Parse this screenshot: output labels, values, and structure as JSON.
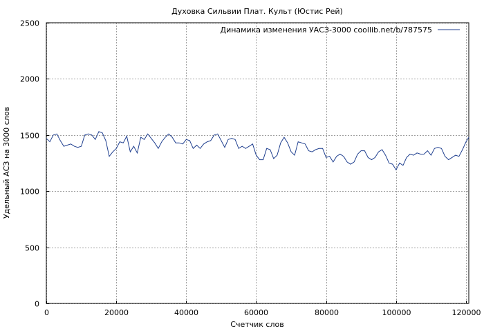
{
  "chart_data": {
    "type": "line",
    "title": "Духовка Сильвии Плат. Культ (Юстис Рей)",
    "xlabel": "Счетчик слов",
    "ylabel": "Удельный АСЗ на 3000 слов",
    "xlim": [
      0,
      120800
    ],
    "ylim": [
      0,
      2500
    ],
    "x_ticks": [
      0,
      20000,
      40000,
      60000,
      80000,
      100000,
      120000
    ],
    "y_ticks": [
      0,
      500,
      1000,
      1500,
      2000,
      2500
    ],
    "grid": true,
    "legend_position": "top-right",
    "series": [
      {
        "name": "Динамика изменения УАСЗ-3000 coollib.net/b/787575",
        "color": "#1f3f8f",
        "x": [
          0,
          1000,
          2000,
          3000,
          4000,
          5000,
          6000,
          7000,
          8000,
          9000,
          10000,
          11000,
          12000,
          13000,
          14000,
          15000,
          16000,
          17000,
          18000,
          19000,
          20000,
          21000,
          22000,
          23000,
          24000,
          25000,
          26000,
          27000,
          28000,
          29000,
          30000,
          31000,
          32000,
          33000,
          34000,
          35000,
          36000,
          37000,
          38000,
          39000,
          40000,
          41000,
          42000,
          43000,
          44000,
          45000,
          46000,
          47000,
          48000,
          49000,
          50000,
          51000,
          52000,
          53000,
          54000,
          55000,
          56000,
          57000,
          58000,
          59000,
          60000,
          61000,
          62000,
          63000,
          64000,
          65000,
          66000,
          67000,
          68000,
          69000,
          70000,
          71000,
          72000,
          73000,
          74000,
          75000,
          76000,
          77000,
          78000,
          79000,
          80000,
          81000,
          82000,
          83000,
          84000,
          85000,
          86000,
          87000,
          88000,
          89000,
          90000,
          91000,
          92000,
          93000,
          94000,
          95000,
          96000,
          97000,
          98000,
          99000,
          100000,
          101000,
          102000,
          103000,
          104000,
          105000,
          106000,
          107000,
          108000,
          109000,
          110000,
          111000,
          112000,
          113000,
          114000,
          115000,
          116000,
          117000,
          118000,
          119000,
          120000,
          120800
        ],
        "y": [
          1470,
          1440,
          1500,
          1510,
          1450,
          1400,
          1410,
          1420,
          1400,
          1390,
          1400,
          1500,
          1510,
          1500,
          1460,
          1530,
          1520,
          1450,
          1310,
          1350,
          1380,
          1440,
          1430,
          1490,
          1350,
          1400,
          1340,
          1480,
          1460,
          1510,
          1470,
          1430,
          1380,
          1440,
          1480,
          1510,
          1480,
          1430,
          1430,
          1420,
          1460,
          1450,
          1380,
          1410,
          1380,
          1420,
          1440,
          1450,
          1500,
          1510,
          1450,
          1390,
          1460,
          1470,
          1460,
          1380,
          1400,
          1380,
          1400,
          1420,
          1320,
          1280,
          1280,
          1380,
          1370,
          1290,
          1320,
          1430,
          1480,
          1430,
          1350,
          1320,
          1440,
          1430,
          1420,
          1360,
          1350,
          1370,
          1380,
          1380,
          1300,
          1310,
          1260,
          1310,
          1330,
          1310,
          1260,
          1240,
          1260,
          1330,
          1360,
          1360,
          1300,
          1280,
          1300,
          1350,
          1370,
          1320,
          1250,
          1240,
          1190,
          1250,
          1230,
          1300,
          1330,
          1320,
          1340,
          1330,
          1330,
          1360,
          1320,
          1380,
          1390,
          1380,
          1310,
          1280,
          1300,
          1320,
          1310,
          1370,
          1440,
          1480
        ]
      }
    ]
  }
}
